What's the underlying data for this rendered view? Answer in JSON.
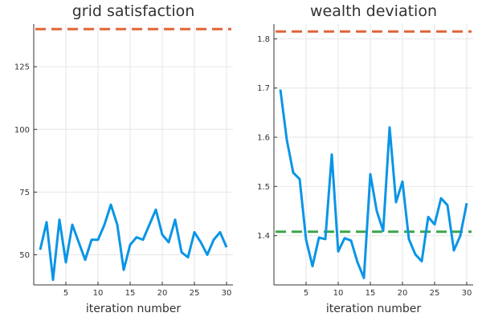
{
  "chart_data": [
    {
      "type": "line",
      "title": "grid satisfaction",
      "xlabel": "iteration number",
      "ylabel": "",
      "xlim": [
        0,
        31
      ],
      "ylim": [
        38,
        142
      ],
      "xticks": [
        5,
        10,
        15,
        20,
        25,
        30
      ],
      "yticks": [
        50,
        75,
        100,
        125
      ],
      "grid": true,
      "legend": "none",
      "series": [
        {
          "color": "#0a95e6",
          "x": [
            1,
            2,
            3,
            4,
            5,
            6,
            7,
            8,
            9,
            10,
            11,
            12,
            13,
            14,
            15,
            16,
            17,
            18,
            19,
            20,
            21,
            22,
            23,
            24,
            25,
            26,
            27,
            28,
            29,
            30
          ],
          "values": [
            52,
            63,
            40,
            64,
            47,
            62,
            55,
            48,
            56,
            56,
            62,
            70,
            62,
            44,
            54,
            57,
            56,
            62,
            68,
            58,
            55,
            64,
            51,
            49,
            59,
            55,
            50,
            56,
            59,
            53
          ]
        }
      ],
      "reference_lines": [
        {
          "y": 140,
          "color": "#e0653a",
          "style": "dashed"
        }
      ]
    },
    {
      "type": "line",
      "title": "wealth deviation",
      "xlabel": "iteration number",
      "ylabel": "",
      "xlim": [
        0,
        31
      ],
      "ylim": [
        1.3,
        1.83
      ],
      "xticks": [
        5,
        10,
        15,
        20,
        25,
        30
      ],
      "yticks": [
        1.4,
        1.5,
        1.6,
        1.7,
        1.8
      ],
      "grid": true,
      "legend": "none",
      "series": [
        {
          "color": "#0a95e6",
          "x": [
            1,
            2,
            3,
            4,
            5,
            6,
            7,
            8,
            9,
            10,
            11,
            12,
            13,
            14,
            15,
            16,
            17,
            18,
            19,
            20,
            21,
            22,
            23,
            24,
            25,
            26,
            27,
            28,
            29,
            30
          ],
          "values": [
            1.697,
            1.595,
            1.528,
            1.515,
            1.392,
            1.338,
            1.396,
            1.393,
            1.565,
            1.368,
            1.395,
            1.39,
            1.346,
            1.314,
            1.525,
            1.45,
            1.41,
            1.62,
            1.468,
            1.51,
            1.393,
            1.362,
            1.348,
            1.438,
            1.423,
            1.476,
            1.462,
            1.37,
            1.4,
            1.466
          ]
        }
      ],
      "reference_lines": [
        {
          "y": 1.815,
          "color": "#e0653a",
          "style": "dashed"
        },
        {
          "y": 1.408,
          "color": "#3ca64b",
          "style": "dashed"
        }
      ]
    }
  ]
}
